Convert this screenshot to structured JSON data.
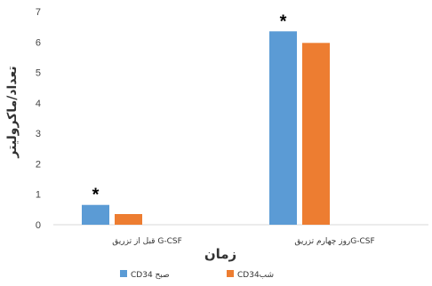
{
  "chart_data": {
    "type": "bar",
    "categories": [
      "قبل از تزریق G-CSF",
      "روز چهارم تزریقG-CSF"
    ],
    "series": [
      {
        "name": "CD34 صبح",
        "values": [
          0.65,
          6.35
        ],
        "color": "#5b9bd5"
      },
      {
        "name": "CD34شب",
        "values": [
          0.35,
          5.97
        ],
        "color": "#ed7d31"
      }
    ],
    "ylim": [
      0,
      7
    ],
    "yticks": [
      0,
      1,
      2,
      3,
      4,
      5,
      6,
      7
    ],
    "xlabel": "زمان",
    "ylabel": "تعداد/ماکرولیتر",
    "annotations": [
      "*",
      "*"
    ],
    "grid": false,
    "legend": "bottom"
  }
}
